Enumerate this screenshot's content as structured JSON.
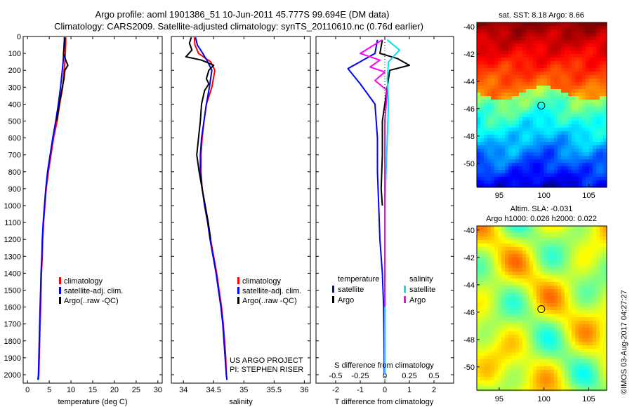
{
  "header": {
    "title1": "Argo profile: aoml 1901386_51 10-Jun-2011 45.777S 99.694E (DM data)",
    "title2": "Climatology: CARS2009. Satellite-adjusted climatology: synTS_20110610.nc (0.76d earlier)"
  },
  "colors": {
    "climatology": "#ff0000",
    "satellite": "#0000ff",
    "argo": "#000000",
    "s_satellite": "#00e5ee",
    "s_argo": "#ff00ff"
  },
  "chart_data": [
    {
      "type": "line",
      "xlabel": "temperature (deg C)",
      "xlim": [
        -1,
        31
      ],
      "xticks": [
        "0",
        "5",
        "10",
        "15",
        "20",
        "25",
        "30"
      ],
      "ylim": [
        2050,
        0
      ],
      "yticks": [
        "0",
        "100",
        "200",
        "300",
        "400",
        "500",
        "600",
        "700",
        "800",
        "900",
        "1000",
        "1100",
        "1200",
        "1300",
        "1400",
        "1500",
        "1600",
        "1700",
        "1800",
        "1900",
        "2000"
      ],
      "legend": [
        "climatology",
        "satellite-adj. clim.",
        "Argo(..raw -QC)"
      ],
      "series": [
        {
          "name": "climatology",
          "points": [
            [
              8.8,
              5
            ],
            [
              8.8,
              40
            ],
            [
              8.7,
              100
            ],
            [
              8.6,
              150
            ],
            [
              8.4,
              200
            ],
            [
              8.1,
              300
            ],
            [
              7.4,
              400
            ],
            [
              6.8,
              500
            ],
            [
              6.0,
              600
            ],
            [
              5.4,
              700
            ],
            [
              4.8,
              800
            ],
            [
              4.3,
              900
            ],
            [
              4.0,
              1000
            ],
            [
              3.7,
              1100
            ],
            [
              3.5,
              1200
            ],
            [
              3.4,
              1300
            ],
            [
              3.2,
              1400
            ],
            [
              3.1,
              1500
            ],
            [
              3.0,
              1600
            ],
            [
              2.9,
              1700
            ],
            [
              2.8,
              1800
            ],
            [
              2.7,
              1900
            ],
            [
              2.6,
              2000
            ],
            [
              2.5,
              2030
            ]
          ]
        },
        {
          "name": "satellite-adj. clim.",
          "points": [
            [
              8.5,
              5
            ],
            [
              8.4,
              50
            ],
            [
              8.3,
              100
            ],
            [
              8.2,
              150
            ],
            [
              8.0,
              200
            ],
            [
              7.6,
              300
            ],
            [
              7.1,
              400
            ],
            [
              6.5,
              500
            ],
            [
              5.8,
              600
            ],
            [
              5.2,
              700
            ],
            [
              4.6,
              800
            ],
            [
              4.2,
              900
            ],
            [
              3.9,
              1000
            ],
            [
              3.6,
              1100
            ],
            [
              3.4,
              1200
            ],
            [
              3.3,
              1300
            ],
            [
              3.1,
              1400
            ],
            [
              3.0,
              1500
            ],
            [
              2.9,
              1600
            ],
            [
              2.8,
              1700
            ],
            [
              2.7,
              1800
            ],
            [
              2.6,
              1900
            ],
            [
              2.5,
              2000
            ],
            [
              2.4,
              2030
            ]
          ]
        },
        {
          "name": "Argo(..raw -QC)",
          "points": [
            [
              8.6,
              5
            ],
            [
              8.5,
              50
            ],
            [
              8.3,
              100
            ],
            [
              8.8,
              140
            ],
            [
              9.3,
              170
            ],
            [
              8.6,
              200
            ],
            [
              8.4,
              250
            ],
            [
              8.0,
              300
            ],
            [
              7.3,
              400
            ],
            [
              6.7,
              500
            ]
          ]
        }
      ]
    },
    {
      "type": "line",
      "xlabel": "salinity",
      "xlim": [
        33.8,
        36.1
      ],
      "xticks": [
        "34",
        "34.5",
        "35",
        "35.5",
        "36"
      ],
      "ylim": [
        2050,
        0
      ],
      "legend": [
        "climatology",
        "satellite-adj. clim.",
        "Argo(..raw -QC)"
      ],
      "annotations": [
        "US ARGO PROJECT",
        "PI: STEPHEN RISER"
      ],
      "series": [
        {
          "name": "climatology",
          "points": [
            [
              34.18,
              5
            ],
            [
              34.19,
              50
            ],
            [
              34.25,
              100
            ],
            [
              34.45,
              150
            ],
            [
              34.52,
              200
            ],
            [
              34.47,
              300
            ],
            [
              34.38,
              400
            ],
            [
              34.34,
              500
            ],
            [
              34.31,
              600
            ],
            [
              34.29,
              700
            ],
            [
              34.29,
              800
            ],
            [
              34.31,
              900
            ],
            [
              34.36,
              1000
            ],
            [
              34.41,
              1100
            ],
            [
              34.45,
              1200
            ],
            [
              34.5,
              1300
            ],
            [
              34.55,
              1400
            ],
            [
              34.59,
              1500
            ],
            [
              34.63,
              1600
            ],
            [
              34.66,
              1700
            ],
            [
              34.68,
              1800
            ],
            [
              34.7,
              1900
            ],
            [
              34.71,
              2000
            ],
            [
              34.72,
              2030
            ]
          ]
        },
        {
          "name": "satellite-adj. clim.",
          "points": [
            [
              34.2,
              5
            ],
            [
              34.23,
              50
            ],
            [
              34.32,
              100
            ],
            [
              34.4,
              150
            ],
            [
              34.47,
              200
            ],
            [
              34.43,
              300
            ],
            [
              34.38,
              400
            ],
            [
              34.34,
              500
            ],
            [
              34.3,
              600
            ],
            [
              34.28,
              700
            ],
            [
              34.28,
              800
            ],
            [
              34.31,
              900
            ],
            [
              34.35,
              1000
            ],
            [
              34.4,
              1100
            ],
            [
              34.44,
              1200
            ],
            [
              34.49,
              1300
            ],
            [
              34.54,
              1400
            ],
            [
              34.58,
              1500
            ],
            [
              34.62,
              1600
            ],
            [
              34.65,
              1700
            ],
            [
              34.67,
              1800
            ],
            [
              34.69,
              1900
            ],
            [
              34.71,
              2000
            ],
            [
              34.72,
              2030
            ]
          ]
        },
        {
          "name": "Argo(..raw -QC)",
          "points": [
            [
              34.13,
              5
            ],
            [
              34.1,
              40
            ],
            [
              34.14,
              80
            ],
            [
              34.04,
              120
            ],
            [
              34.3,
              140
            ],
            [
              34.5,
              170
            ],
            [
              34.42,
              200
            ],
            [
              34.38,
              250
            ],
            [
              34.42,
              280
            ],
            [
              34.35,
              320
            ],
            [
              34.3,
              400
            ],
            [
              34.28,
              500
            ],
            [
              34.25,
              600
            ],
            [
              34.22,
              700
            ],
            [
              34.26,
              800
            ],
            [
              34.31,
              900
            ],
            [
              34.36,
              1000
            ],
            [
              34.41,
              1100
            ],
            [
              34.45,
              1200
            ]
          ]
        }
      ]
    },
    {
      "type": "line",
      "xlabel": "T difference from climatology",
      "xlabel_top": "S difference from climatology",
      "xlim": [
        -2.8,
        2.8
      ],
      "xticks": [
        "-2",
        "-1",
        "0",
        "1",
        "2"
      ],
      "xticks_top": [
        "-0.5",
        "-0.25",
        "0",
        "0.25",
        "0.5"
      ],
      "ylim": [
        2050,
        0
      ],
      "legend_headers": [
        "temperature",
        "salinity"
      ],
      "legend_t": [
        "satellite",
        "Argo"
      ],
      "legend_s": [
        "satellite",
        "Argo"
      ],
      "series": [
        {
          "name": "T satellite",
          "points": [
            [
              -0.3,
              20
            ],
            [
              -0.4,
              100
            ],
            [
              -1.5,
              190
            ],
            [
              -1.0,
              280
            ],
            [
              -0.4,
              400
            ],
            [
              -0.3,
              600
            ],
            [
              -0.3,
              800
            ],
            [
              -0.25,
              1000
            ],
            [
              -0.2,
              1200
            ],
            [
              -0.1,
              1400
            ],
            [
              -0.05,
              1600
            ],
            [
              -0.03,
              1800
            ],
            [
              -0.02,
              2000
            ]
          ]
        },
        {
          "name": "T Argo",
          "points": [
            [
              -0.1,
              20
            ],
            [
              -0.2,
              100
            ],
            [
              0.5,
              130
            ],
            [
              1.0,
              170
            ],
            [
              0.2,
              200
            ],
            [
              0.1,
              300
            ],
            [
              0.0,
              400
            ],
            [
              -0.1,
              500
            ],
            [
              -0.1,
              700
            ],
            [
              -0.15,
              900
            ],
            [
              -0.1,
              1000
            ]
          ]
        },
        {
          "name": "S satellite",
          "points": [
            [
              0.1,
              20
            ],
            [
              0.6,
              80
            ],
            [
              0.15,
              150
            ],
            [
              0.1,
              250
            ],
            [
              0.15,
              400
            ],
            [
              0.1,
              600
            ],
            [
              0.05,
              800
            ],
            [
              0.0,
              1000
            ],
            [
              0.0,
              1400
            ],
            [
              0.0,
              1800
            ],
            [
              0.0,
              2000
            ]
          ]
        },
        {
          "name": "S Argo",
          "points": [
            [
              -0.1,
              20
            ],
            [
              -1.0,
              100
            ],
            [
              -0.2,
              140
            ],
            [
              -0.6,
              180
            ],
            [
              0.0,
              210
            ],
            [
              -0.4,
              260
            ],
            [
              0.1,
              320
            ],
            [
              0.0,
              500
            ],
            [
              0.0,
              700
            ],
            [
              0.0,
              900
            ],
            [
              0.0,
              1100
            ],
            [
              0.0,
              1400
            ],
            [
              0.0,
              1600
            ]
          ]
        }
      ]
    },
    {
      "type": "heatmap",
      "title": "sat. SST: 8.18 Argo: 8.66",
      "xticks": [
        "95",
        "100",
        "105"
      ],
      "yticks": [
        "-40",
        "-42",
        "-44",
        "-46",
        "-48",
        "-50"
      ]
    },
    {
      "type": "heatmap",
      "title_line1": "Altim. SLA: -0.031",
      "title_line2": "Argo h1000: 0.026 h2000: 0.022",
      "xticks": [
        "95",
        "100",
        "105"
      ],
      "yticks": [
        "-40",
        "-42",
        "-44",
        "-46",
        "-48",
        "-50"
      ]
    }
  ],
  "footer": {
    "credit": "©IMOS 03-Aug-2017 04:27:27"
  }
}
